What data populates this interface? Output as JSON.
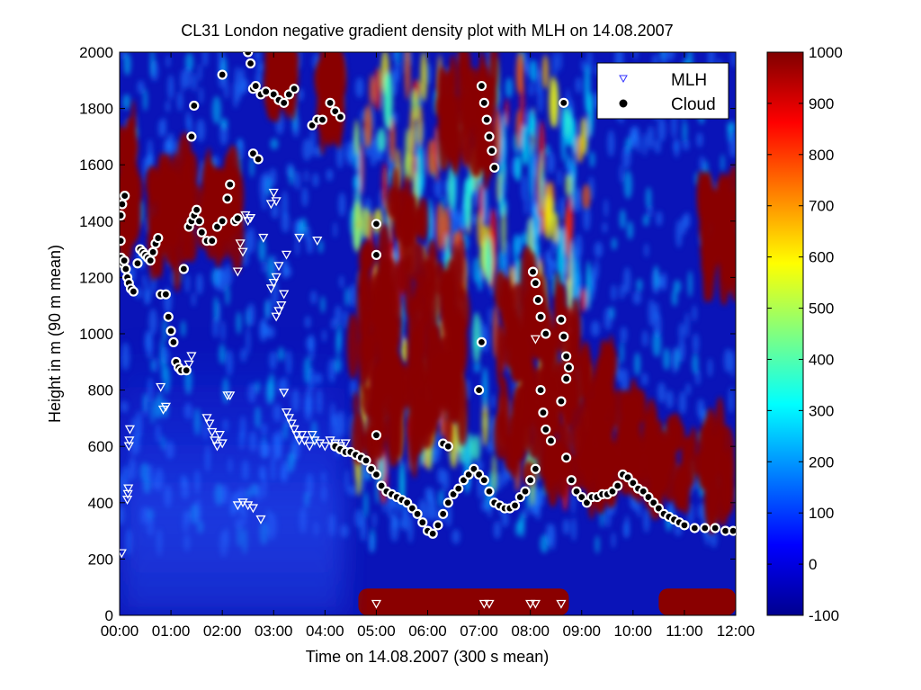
{
  "chart_data": {
    "type": "heatmap",
    "title": "CL31 London negative gradient density plot with MLH on 14.08.2007",
    "xlabel": "Time on 14.08.2007 (300 s mean)",
    "ylabel": "Height in m (90 m mean)",
    "xlim": [
      "00:00",
      "12:00"
    ],
    "ylim": [
      0,
      2000
    ],
    "x_ticks": [
      "00:00",
      "01:00",
      "02:00",
      "03:00",
      "04:00",
      "05:00",
      "06:00",
      "07:00",
      "08:00",
      "09:00",
      "10:00",
      "11:00",
      "12:00"
    ],
    "y_ticks": [
      "0",
      "200",
      "400",
      "600",
      "800",
      "1000",
      "1200",
      "1400",
      "1600",
      "1800",
      "2000"
    ],
    "colorbar": {
      "range": [
        -100,
        1000
      ],
      "colormap": "jet",
      "ticks": [
        "-100",
        "0",
        "100",
        "200",
        "300",
        "400",
        "500",
        "600",
        "700",
        "800",
        "900",
        "1000"
      ]
    },
    "legend": {
      "placement": "top-right",
      "entries": [
        {
          "label": "MLH",
          "marker": "triangle-down",
          "color": "#3030ff"
        },
        {
          "label": "Cloud",
          "marker": "circle",
          "color": "#000000"
        }
      ]
    },
    "series": [
      {
        "name": "MLH",
        "marker": "triangle-down",
        "points": [
          [
            0.04,
            220
          ],
          [
            0.15,
            410
          ],
          [
            0.16,
            430
          ],
          [
            0.17,
            450
          ],
          [
            0.18,
            600
          ],
          [
            0.19,
            620
          ],
          [
            0.2,
            660
          ],
          [
            0.85,
            730
          ],
          [
            0.9,
            740
          ],
          [
            0.8,
            810
          ],
          [
            1.35,
            890
          ],
          [
            1.4,
            920
          ],
          [
            1.7,
            700
          ],
          [
            1.75,
            680
          ],
          [
            1.8,
            650
          ],
          [
            1.85,
            620
          ],
          [
            1.9,
            600
          ],
          [
            1.95,
            640
          ],
          [
            2.0,
            610
          ],
          [
            2.1,
            780
          ],
          [
            2.15,
            780
          ],
          [
            2.3,
            1220
          ],
          [
            2.35,
            1320
          ],
          [
            2.4,
            1290
          ],
          [
            2.45,
            1420
          ],
          [
            2.5,
            1400
          ],
          [
            2.55,
            1410
          ],
          [
            2.3,
            390
          ],
          [
            2.4,
            400
          ],
          [
            2.5,
            390
          ],
          [
            2.6,
            380
          ],
          [
            2.75,
            340
          ],
          [
            2.8,
            1340
          ],
          [
            2.95,
            1460
          ],
          [
            3.0,
            1500
          ],
          [
            3.05,
            1470
          ],
          [
            2.95,
            1160
          ],
          [
            3.0,
            1180
          ],
          [
            3.05,
            1200
          ],
          [
            3.1,
            1240
          ],
          [
            3.05,
            1060
          ],
          [
            3.1,
            1080
          ],
          [
            3.15,
            1100
          ],
          [
            3.2,
            1140
          ],
          [
            3.25,
            1280
          ],
          [
            3.2,
            790
          ],
          [
            3.25,
            720
          ],
          [
            3.3,
            700
          ],
          [
            3.35,
            680
          ],
          [
            3.4,
            660
          ],
          [
            3.45,
            640
          ],
          [
            3.5,
            620
          ],
          [
            3.55,
            640
          ],
          [
            3.6,
            620
          ],
          [
            3.7,
            600
          ],
          [
            3.75,
            640
          ],
          [
            3.8,
            620
          ],
          [
            3.9,
            610
          ],
          [
            4.0,
            600
          ],
          [
            4.1,
            620
          ],
          [
            4.2,
            610
          ],
          [
            3.5,
            1340
          ],
          [
            3.85,
            1330
          ],
          [
            4.3,
            600
          ],
          [
            4.4,
            610
          ],
          [
            5.0,
            40
          ],
          [
            7.1,
            40
          ],
          [
            7.2,
            40
          ],
          [
            8.0,
            40
          ],
          [
            8.1,
            40
          ],
          [
            8.6,
            40
          ],
          [
            8.1,
            980
          ]
        ]
      },
      {
        "name": "Cloud",
        "marker": "circle",
        "points": [
          [
            0.02,
            1420
          ],
          [
            0.05,
            1460
          ],
          [
            0.1,
            1490
          ],
          [
            0.02,
            1330
          ],
          [
            0.03,
            1270
          ],
          [
            0.06,
            1250
          ],
          [
            0.09,
            1260
          ],
          [
            0.12,
            1230
          ],
          [
            0.15,
            1200
          ],
          [
            0.18,
            1180
          ],
          [
            0.22,
            1160
          ],
          [
            0.27,
            1150
          ],
          [
            0.35,
            1250
          ],
          [
            0.4,
            1300
          ],
          [
            0.45,
            1290
          ],
          [
            0.5,
            1280
          ],
          [
            0.55,
            1270
          ],
          [
            0.6,
            1260
          ],
          [
            0.65,
            1290
          ],
          [
            0.7,
            1320
          ],
          [
            0.75,
            1340
          ],
          [
            0.8,
            1140
          ],
          [
            0.9,
            1140
          ],
          [
            0.95,
            1060
          ],
          [
            1.0,
            1010
          ],
          [
            1.05,
            970
          ],
          [
            1.1,
            900
          ],
          [
            1.15,
            880
          ],
          [
            1.2,
            870
          ],
          [
            1.3,
            870
          ],
          [
            1.25,
            1230
          ],
          [
            1.35,
            1380
          ],
          [
            1.4,
            1400
          ],
          [
            1.45,
            1420
          ],
          [
            1.5,
            1440
          ],
          [
            1.55,
            1400
          ],
          [
            1.6,
            1360
          ],
          [
            1.7,
            1330
          ],
          [
            1.8,
            1330
          ],
          [
            1.9,
            1380
          ],
          [
            2.0,
            1400
          ],
          [
            2.1,
            1480
          ],
          [
            2.15,
            1530
          ],
          [
            2.25,
            1400
          ],
          [
            2.3,
            1410
          ],
          [
            1.4,
            1700
          ],
          [
            1.45,
            1810
          ],
          [
            2.0,
            1920
          ],
          [
            2.5,
            2000
          ],
          [
            2.55,
            1960
          ],
          [
            2.6,
            1870
          ],
          [
            2.65,
            1880
          ],
          [
            2.75,
            1850
          ],
          [
            2.85,
            1860
          ],
          [
            3.0,
            1850
          ],
          [
            3.1,
            1830
          ],
          [
            3.2,
            1820
          ],
          [
            3.3,
            1850
          ],
          [
            3.4,
            1870
          ],
          [
            2.6,
            1640
          ],
          [
            2.7,
            1620
          ],
          [
            3.75,
            1740
          ],
          [
            3.85,
            1760
          ],
          [
            3.95,
            1760
          ],
          [
            4.1,
            1820
          ],
          [
            4.2,
            1790
          ],
          [
            4.3,
            1770
          ],
          [
            4.2,
            600
          ],
          [
            4.3,
            590
          ],
          [
            4.4,
            580
          ],
          [
            4.5,
            580
          ],
          [
            4.6,
            570
          ],
          [
            4.7,
            560
          ],
          [
            4.8,
            550
          ],
          [
            4.9,
            520
          ],
          [
            5.0,
            500
          ],
          [
            5.1,
            460
          ],
          [
            5.2,
            440
          ],
          [
            5.3,
            430
          ],
          [
            5.4,
            420
          ],
          [
            5.5,
            410
          ],
          [
            5.6,
            400
          ],
          [
            5.7,
            380
          ],
          [
            5.8,
            360
          ],
          [
            5.9,
            330
          ],
          [
            6.0,
            300
          ],
          [
            6.1,
            290
          ],
          [
            6.2,
            320
          ],
          [
            6.3,
            360
          ],
          [
            6.4,
            400
          ],
          [
            6.5,
            430
          ],
          [
            6.6,
            450
          ],
          [
            6.7,
            480
          ],
          [
            6.8,
            500
          ],
          [
            6.9,
            520
          ],
          [
            7.0,
            500
          ],
          [
            7.1,
            480
          ],
          [
            7.2,
            440
          ],
          [
            7.3,
            400
          ],
          [
            7.4,
            390
          ],
          [
            7.5,
            380
          ],
          [
            7.6,
            380
          ],
          [
            7.7,
            390
          ],
          [
            7.8,
            420
          ],
          [
            7.9,
            440
          ],
          [
            8.0,
            480
          ],
          [
            8.1,
            520
          ],
          [
            5.0,
            1390
          ],
          [
            5.0,
            1280
          ],
          [
            5.0,
            640
          ],
          [
            6.3,
            610
          ],
          [
            6.4,
            600
          ],
          [
            7.05,
            970
          ],
          [
            7.0,
            800
          ],
          [
            7.05,
            1880
          ],
          [
            7.1,
            1820
          ],
          [
            7.15,
            1760
          ],
          [
            7.2,
            1700
          ],
          [
            7.25,
            1650
          ],
          [
            7.3,
            1590
          ],
          [
            8.05,
            1220
          ],
          [
            8.1,
            1180
          ],
          [
            8.15,
            1120
          ],
          [
            8.2,
            1060
          ],
          [
            8.3,
            1000
          ],
          [
            8.2,
            800
          ],
          [
            8.25,
            720
          ],
          [
            8.3,
            660
          ],
          [
            8.4,
            620
          ],
          [
            8.6,
            1050
          ],
          [
            8.65,
            990
          ],
          [
            8.7,
            920
          ],
          [
            8.75,
            880
          ],
          [
            8.7,
            840
          ],
          [
            8.6,
            760
          ],
          [
            8.7,
            560
          ],
          [
            8.8,
            480
          ],
          [
            8.9,
            440
          ],
          [
            9.0,
            420
          ],
          [
            9.1,
            400
          ],
          [
            9.2,
            420
          ],
          [
            9.3,
            420
          ],
          [
            9.4,
            430
          ],
          [
            9.5,
            430
          ],
          [
            9.6,
            440
          ],
          [
            9.7,
            460
          ],
          [
            9.8,
            500
          ],
          [
            9.9,
            490
          ],
          [
            10.0,
            470
          ],
          [
            10.1,
            450
          ],
          [
            10.2,
            440
          ],
          [
            10.3,
            420
          ],
          [
            10.4,
            400
          ],
          [
            10.5,
            380
          ],
          [
            10.6,
            360
          ],
          [
            10.7,
            350
          ],
          [
            10.8,
            340
          ],
          [
            10.9,
            330
          ],
          [
            11.0,
            320
          ],
          [
            11.2,
            310
          ],
          [
            11.4,
            310
          ],
          [
            11.6,
            310
          ],
          [
            11.8,
            300
          ],
          [
            11.95,
            300
          ],
          [
            8.65,
            1820
          ]
        ]
      }
    ]
  }
}
